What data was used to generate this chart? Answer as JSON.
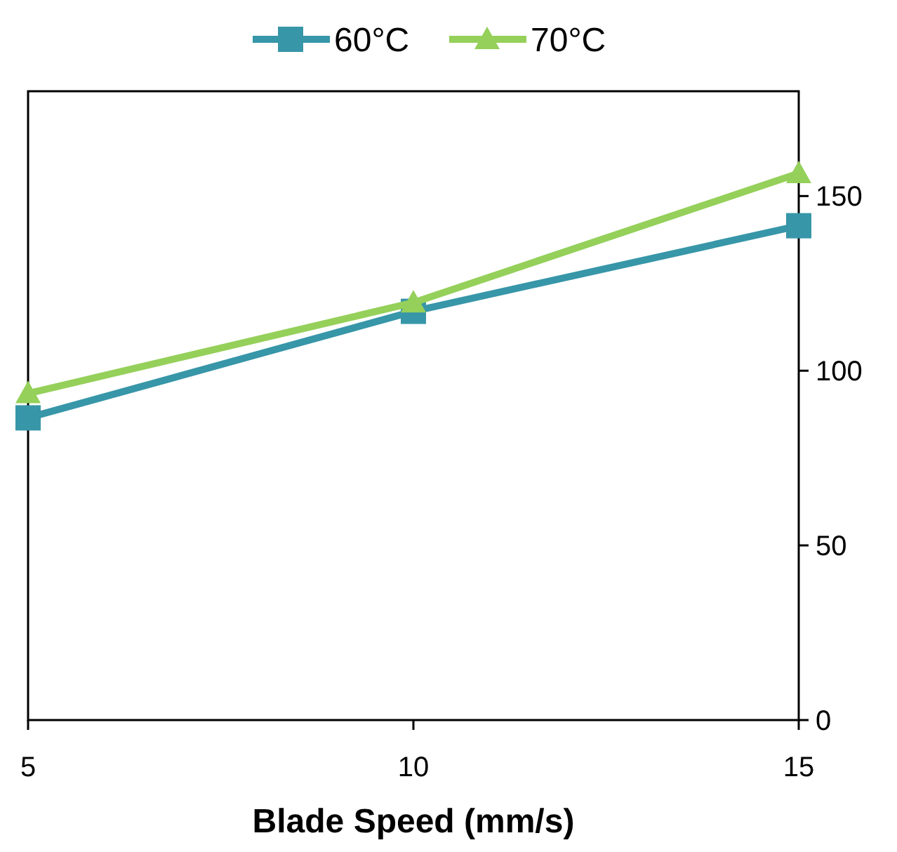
{
  "chart_data": {
    "type": "line",
    "xlabel": "Blade Speed (mm/s)",
    "x": [
      5,
      10,
      15
    ],
    "series": [
      {
        "name": "60°C",
        "color": "#3796a8",
        "values": [
          86.5,
          117,
          141.5
        ],
        "marker": "square"
      },
      {
        "name": "70°C",
        "color": "#95d05a",
        "values": [
          93.5,
          119.5,
          156.5
        ],
        "marker": "triangle"
      }
    ],
    "xlim": [
      5,
      15
    ],
    "xticks": [
      5,
      10,
      15
    ],
    "ylim": [
      0,
      180
    ],
    "yticks": [
      0,
      50,
      100,
      150
    ],
    "grid": false,
    "legend": "top",
    "line_style": "solid"
  }
}
